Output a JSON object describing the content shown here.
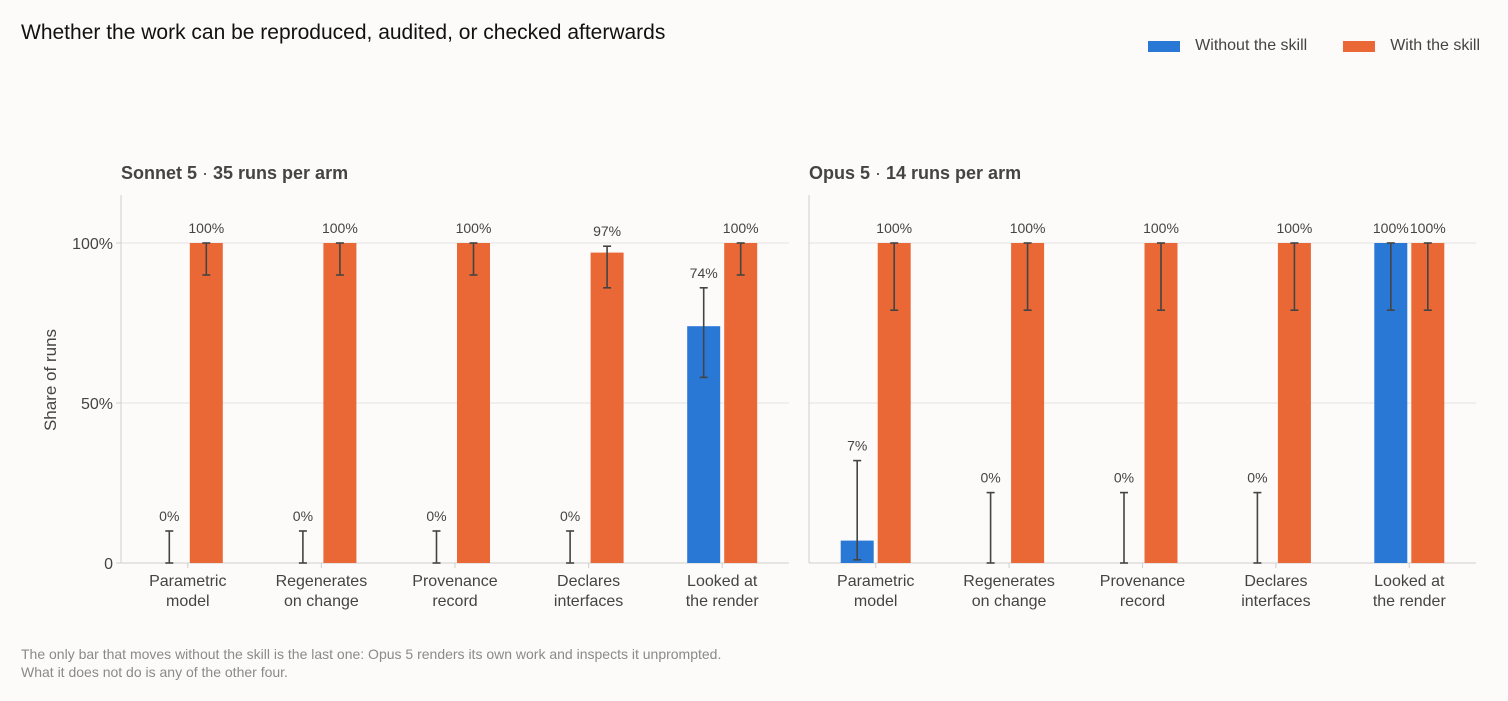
{
  "title": "Whether the work can be reproduced, audited, or checked afterwards",
  "footnote": [
    "The only bar that moves without the skill is the last one: Opus 5 renders its own work and inspects it unprompted.",
    "What it does not do is any of the other four."
  ],
  "colors": {
    "without": "#2a78d6",
    "with": "#ea6836"
  },
  "chart_data": [
    {
      "type": "bar",
      "model": "Sonnet 5",
      "subtitle": "35 runs per arm",
      "ylabel": "Share of runs",
      "ylim": [
        0,
        1.15
      ],
      "yticks": [
        0,
        0.5,
        1.0
      ],
      "ytick_labels": [
        "0",
        "50%",
        "100%"
      ],
      "categories": [
        [
          "Parametric",
          "model"
        ],
        [
          "Regenerates",
          "on change"
        ],
        [
          "Provenance",
          "record"
        ],
        [
          "Declares",
          "interfaces"
        ],
        [
          "Looked at",
          "the render"
        ]
      ],
      "legend_position": "top-right",
      "grid": true,
      "series": [
        {
          "name": "Without the skill",
          "values": [
            0,
            0,
            0,
            0,
            0.74
          ],
          "labels": [
            "0%",
            "0%",
            "0%",
            "0%",
            "74%"
          ],
          "err_low": [
            0,
            0,
            0,
            0,
            0.58
          ],
          "err_high": [
            0.1,
            0.1,
            0.1,
            0.1,
            0.86
          ]
        },
        {
          "name": "With the skill",
          "values": [
            1.0,
            1.0,
            1.0,
            0.97,
            1.0
          ],
          "labels": [
            "100%",
            "100%",
            "100%",
            "97%",
            "100%"
          ],
          "err_low": [
            0.9,
            0.9,
            0.9,
            0.86,
            0.9
          ],
          "err_high": [
            1.0,
            1.0,
            1.0,
            0.99,
            1.0
          ]
        }
      ]
    },
    {
      "type": "bar",
      "model": "Opus 5",
      "subtitle": "14 runs per arm",
      "ylabel": "",
      "ylim": [
        0,
        1.15
      ],
      "yticks": [
        0,
        0.5,
        1.0
      ],
      "ytick_labels": [],
      "categories": [
        [
          "Parametric",
          "model"
        ],
        [
          "Regenerates",
          "on change"
        ],
        [
          "Provenance",
          "record"
        ],
        [
          "Declares",
          "interfaces"
        ],
        [
          "Looked at",
          "the render"
        ]
      ],
      "legend_position": "top-right",
      "grid": true,
      "series": [
        {
          "name": "Without the skill",
          "values": [
            0.07,
            0,
            0,
            0,
            1.0
          ],
          "labels": [
            "7%",
            "0%",
            "0%",
            "0%",
            "100%"
          ],
          "err_low": [
            0.01,
            0,
            0,
            0,
            0.79
          ],
          "err_high": [
            0.32,
            0.22,
            0.22,
            0.22,
            1.0
          ]
        },
        {
          "name": "With the skill",
          "values": [
            1.0,
            1.0,
            1.0,
            1.0,
            1.0
          ],
          "labels": [
            "100%",
            "100%",
            "100%",
            "100%",
            "100%"
          ],
          "err_low": [
            0.79,
            0.79,
            0.79,
            0.79,
            0.79
          ],
          "err_high": [
            1.0,
            1.0,
            1.0,
            1.0,
            1.0
          ]
        }
      ]
    }
  ]
}
